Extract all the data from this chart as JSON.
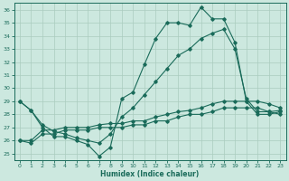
{
  "xlabel": "Humidex (Indice chaleur)",
  "background_color": "#cce8df",
  "grid_color": "#aaccbf",
  "line_color": "#1a6b5a",
  "xlim": [
    -0.5,
    23.5
  ],
  "ylim": [
    24.5,
    36.5
  ],
  "yticks": [
    25,
    26,
    27,
    28,
    29,
    30,
    31,
    32,
    33,
    34,
    35,
    36
  ],
  "xticks": [
    0,
    1,
    2,
    3,
    4,
    5,
    6,
    7,
    8,
    9,
    10,
    11,
    12,
    13,
    14,
    15,
    16,
    17,
    18,
    19,
    20,
    21,
    22,
    23
  ],
  "lines": [
    {
      "x": [
        0,
        1,
        2,
        3,
        4,
        5,
        6,
        7,
        8,
        9,
        10,
        11,
        12,
        13,
        14,
        15,
        16,
        17,
        18,
        19,
        20,
        21,
        22,
        23
      ],
      "y": [
        29.0,
        28.3,
        27.0,
        26.3,
        26.3,
        26.0,
        25.7,
        24.8,
        25.5,
        29.2,
        29.7,
        31.8,
        33.8,
        35.0,
        35.0,
        34.8,
        36.2,
        35.3,
        35.3,
        33.5,
        29.0,
        28.0,
        28.0,
        28.2
      ]
    },
    {
      "x": [
        0,
        1,
        2,
        3,
        4,
        5,
        6,
        7,
        8,
        9,
        10,
        11,
        12,
        13,
        14,
        15,
        16,
        17,
        18,
        19,
        20,
        21,
        22,
        23
      ],
      "y": [
        29.0,
        28.3,
        27.2,
        26.7,
        26.5,
        26.2,
        26.0,
        25.8,
        26.5,
        27.8,
        28.5,
        29.5,
        30.5,
        31.5,
        32.5,
        33.0,
        33.8,
        34.2,
        34.5,
        33.0,
        29.2,
        28.2,
        28.2,
        28.3
      ]
    },
    {
      "x": [
        0,
        1,
        2,
        3,
        4,
        5,
        6,
        7,
        8,
        9,
        10,
        11,
        12,
        13,
        14,
        15,
        16,
        17,
        18,
        19,
        20,
        21,
        22,
        23
      ],
      "y": [
        26.0,
        26.0,
        26.8,
        26.8,
        27.0,
        27.0,
        27.0,
        27.2,
        27.3,
        27.3,
        27.5,
        27.5,
        27.8,
        28.0,
        28.2,
        28.3,
        28.5,
        28.8,
        29.0,
        29.0,
        29.0,
        29.0,
        28.8,
        28.5
      ]
    },
    {
      "x": [
        0,
        1,
        2,
        3,
        4,
        5,
        6,
        7,
        8,
        9,
        10,
        11,
        12,
        13,
        14,
        15,
        16,
        17,
        18,
        19,
        20,
        21,
        22,
        23
      ],
      "y": [
        26.0,
        25.8,
        26.5,
        26.5,
        26.8,
        26.8,
        26.8,
        27.0,
        27.0,
        27.0,
        27.2,
        27.2,
        27.5,
        27.5,
        27.8,
        28.0,
        28.0,
        28.2,
        28.5,
        28.5,
        28.5,
        28.5,
        28.2,
        28.0
      ]
    }
  ]
}
